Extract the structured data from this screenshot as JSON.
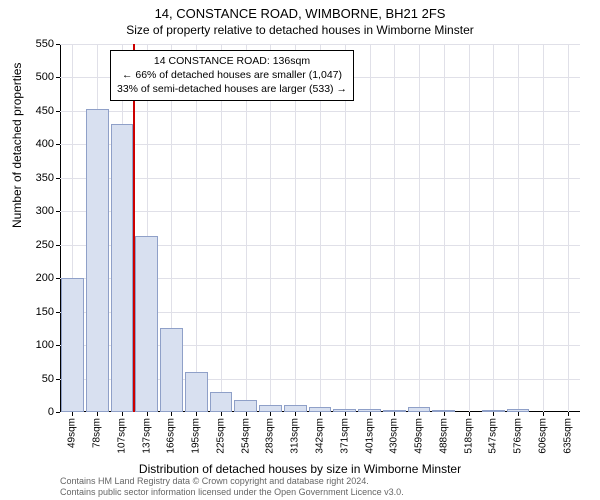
{
  "title": {
    "main": "14, CONSTANCE ROAD, WIMBORNE, BH21 2FS",
    "sub": "Size of property relative to detached houses in Wimborne Minster"
  },
  "chart": {
    "type": "histogram",
    "x_categories": [
      "49sqm",
      "78sqm",
      "107sqm",
      "137sqm",
      "166sqm",
      "195sqm",
      "225sqm",
      "254sqm",
      "283sqm",
      "313sqm",
      "342sqm",
      "371sqm",
      "401sqm",
      "430sqm",
      "459sqm",
      "488sqm",
      "518sqm",
      "547sqm",
      "576sqm",
      "606sqm",
      "635sqm"
    ],
    "values": [
      200,
      453,
      430,
      263,
      125,
      60,
      30,
      18,
      10,
      10,
      8,
      5,
      4,
      3,
      8,
      2,
      0,
      2,
      5,
      0,
      0
    ],
    "ylim": [
      0,
      550
    ],
    "ytick_step": 50,
    "bar_fill": "#d8e0f0",
    "bar_stroke": "#8fa0c8",
    "grid_color": "#e0e0e8",
    "background_color": "#ffffff",
    "reference_line": {
      "index_after_bar": 2,
      "color": "#cc0000",
      "width": 2
    },
    "ylabel": "Number of detached properties",
    "xlabel": "Distribution of detached houses by size in Wimborne Minster",
    "label_fontsize": 12,
    "tick_fontsize": 11
  },
  "annotation": {
    "line1": "14 CONSTANCE ROAD: 136sqm",
    "line2": "← 66% of detached houses are smaller (1,047)",
    "line3": "33% of semi-detached houses are larger (533) →"
  },
  "footer": {
    "line1": "Contains HM Land Registry data © Crown copyright and database right 2024.",
    "line2": "Contains public sector information licensed under the Open Government Licence v3.0."
  }
}
